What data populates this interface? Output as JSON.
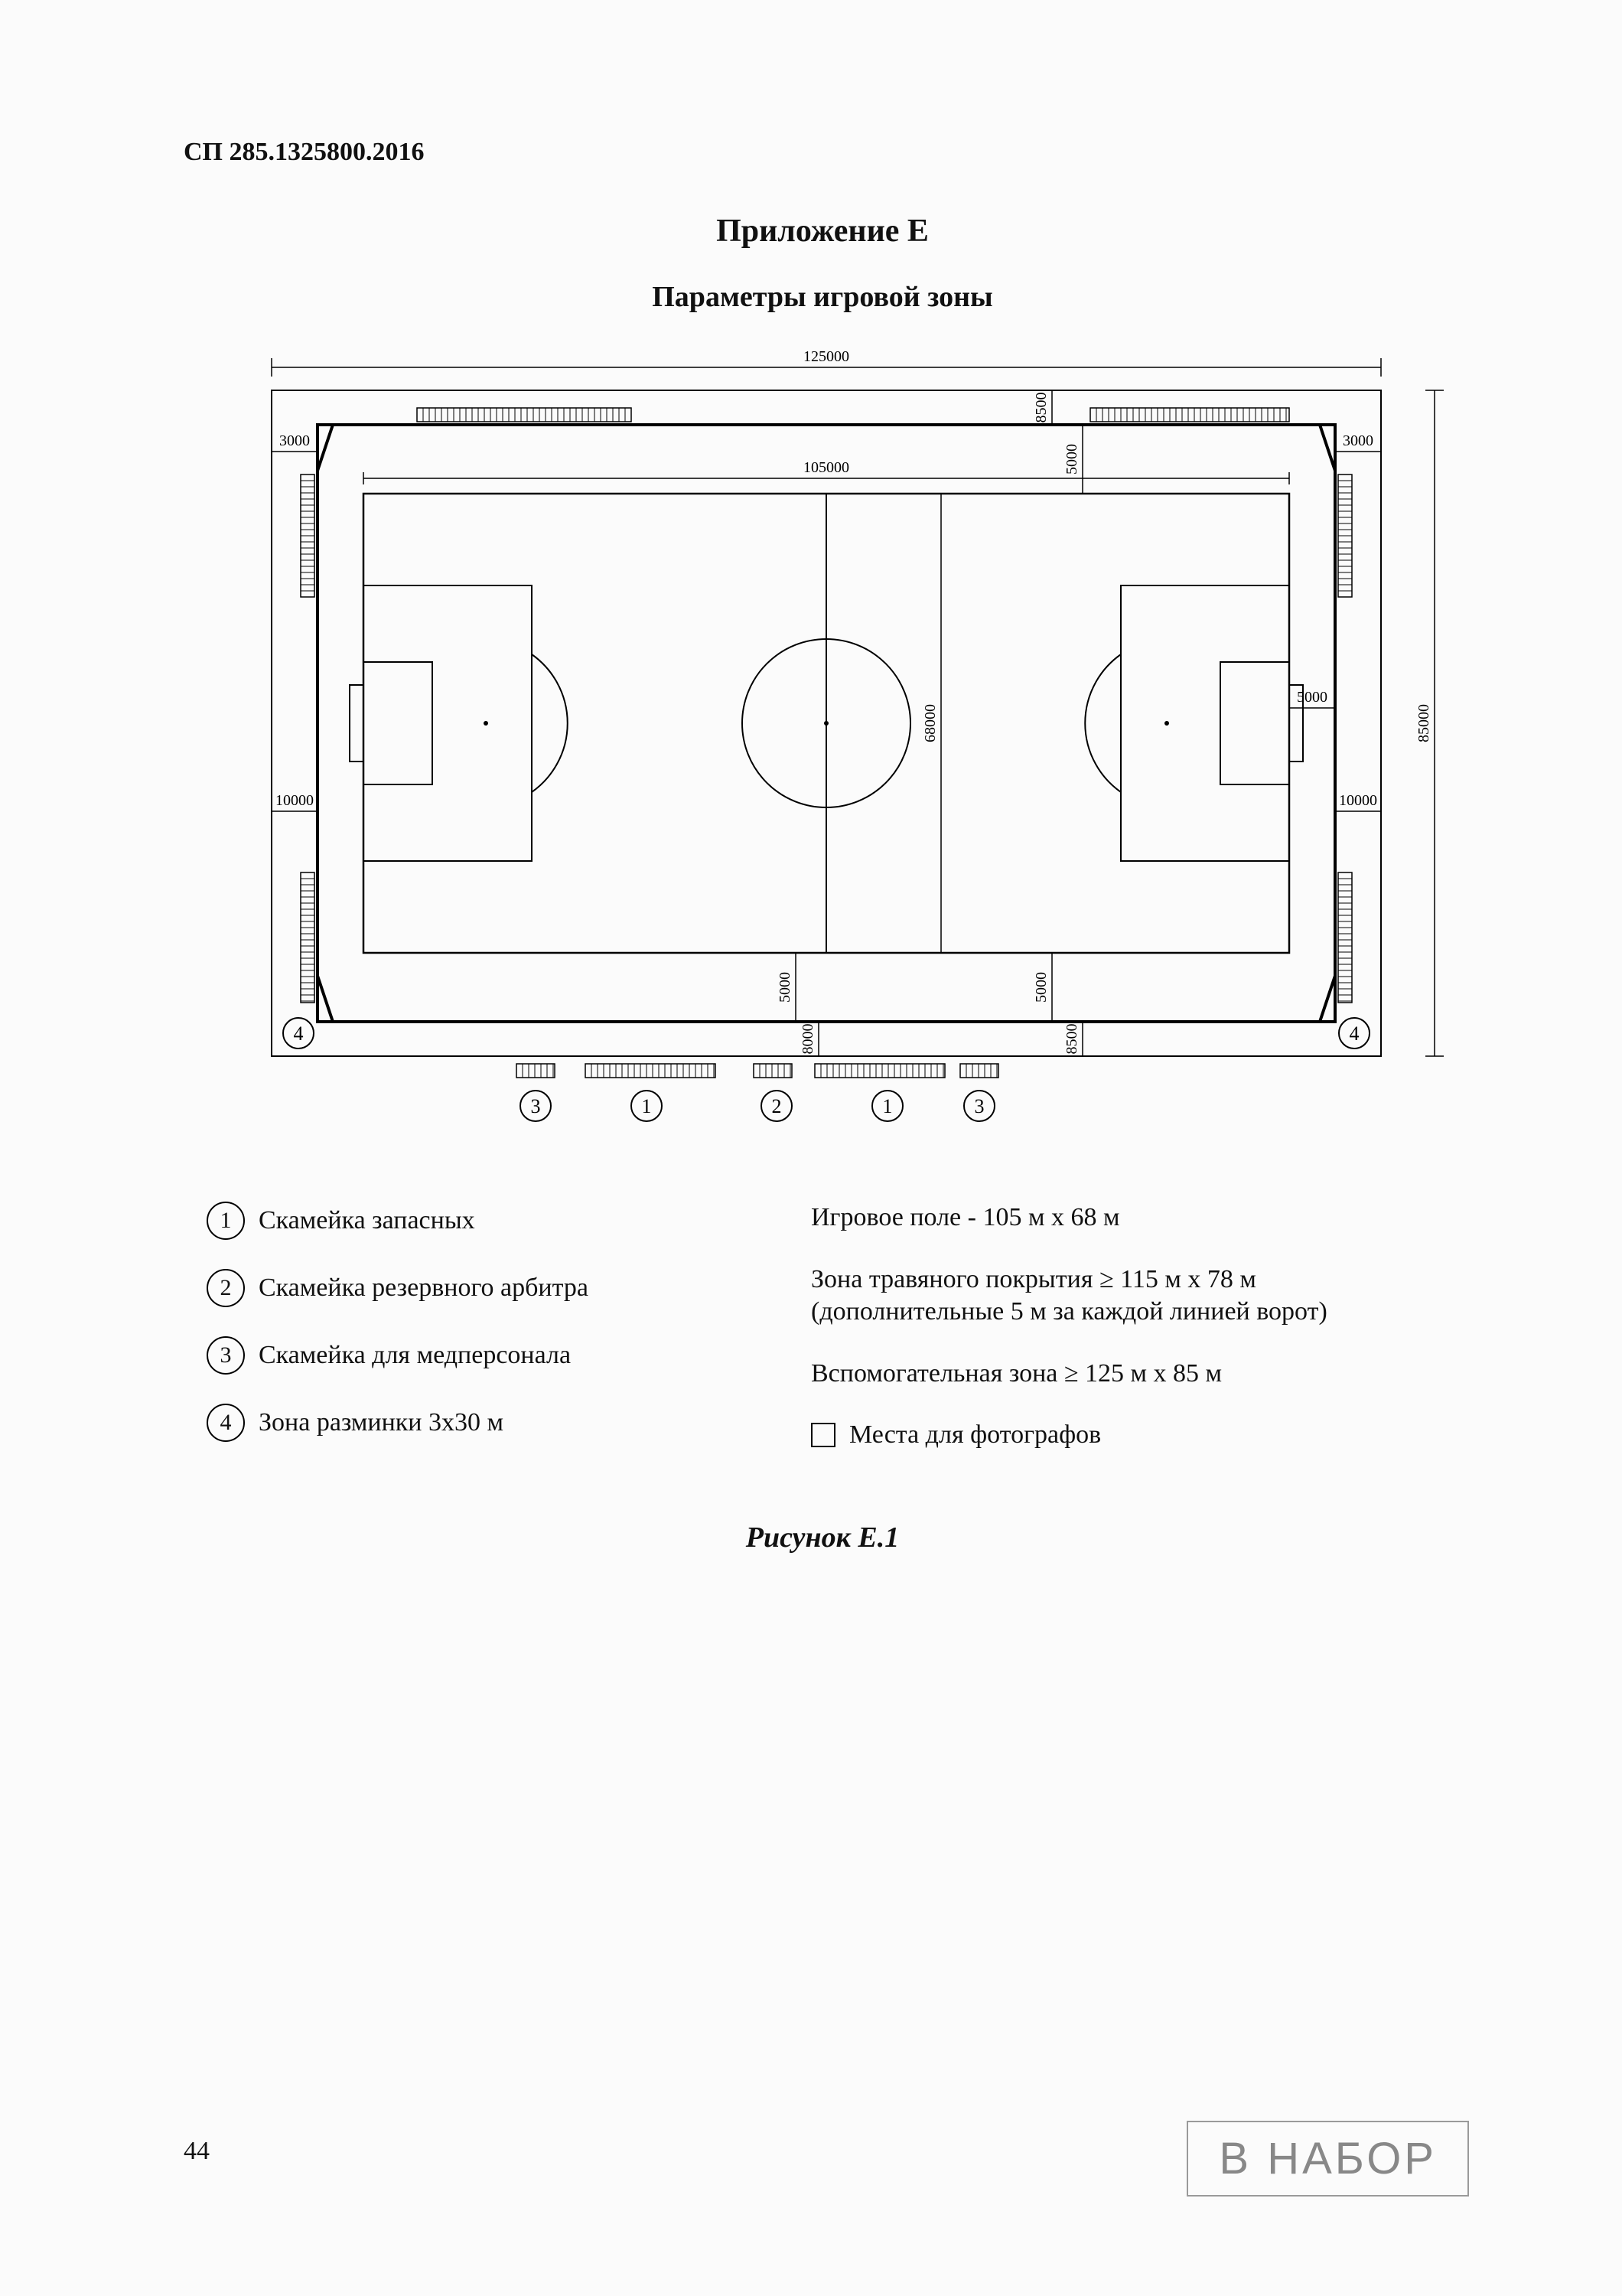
{
  "doc_code": "СП 285.1325800.2016",
  "title_appendix": "Приложение Е",
  "title_sub": "Параметры игровой зоны",
  "figure_caption": "Рисунок Е.1",
  "page_number": "44",
  "stamp_text": "В НАБОР",
  "diagram": {
    "type": "technical-plan",
    "viewbox_w": 1660,
    "viewbox_h": 1080,
    "outer_dim_w_label": "125000",
    "outer_dim_h_label": "85000",
    "field_w_label": "105000",
    "field_h_label": "68000",
    "side_margin_left_label": "3000",
    "side_margin_right_label": "3000",
    "corner_h_label": "10000",
    "corner_h_label2": "10000",
    "top_right_v1": "8500",
    "top_right_v2": "5000",
    "bottom_v1": "5000",
    "bottom_v2": "8000",
    "bench_gap_top": "8500",
    "bench_gap_top2": "5000",
    "goal_depth_label": "5000",
    "stroke": "#000000",
    "stroke_thin": 2,
    "stroke_thick": 4,
    "label_fontsize": 20,
    "circle_label_fontsize": 26,
    "bench_callouts": [
      "3",
      "1",
      "2",
      "1",
      "3"
    ],
    "corner_callout": "4"
  },
  "legend_left": [
    {
      "num": "1",
      "text": "Скамейка запасных"
    },
    {
      "num": "2",
      "text": "Скамейка резервного арбитра"
    },
    {
      "num": "3",
      "text": "Скамейка для медперсонала"
    },
    {
      "num": "4",
      "text": "Зона разминки 3х30 м"
    }
  ],
  "legend_right": [
    {
      "marker": "none",
      "text": "Игровое поле - 105 м х 68 м"
    },
    {
      "marker": "none",
      "text": "Зона травяного покрытия ≥ 115 м х 78 м (дополнительные 5 м за каждой линией ворот)"
    },
    {
      "marker": "none",
      "text": "Вспомогательная зона ≥ 125 м х 85 м"
    },
    {
      "marker": "square",
      "text": "Места для фотографов"
    }
  ]
}
